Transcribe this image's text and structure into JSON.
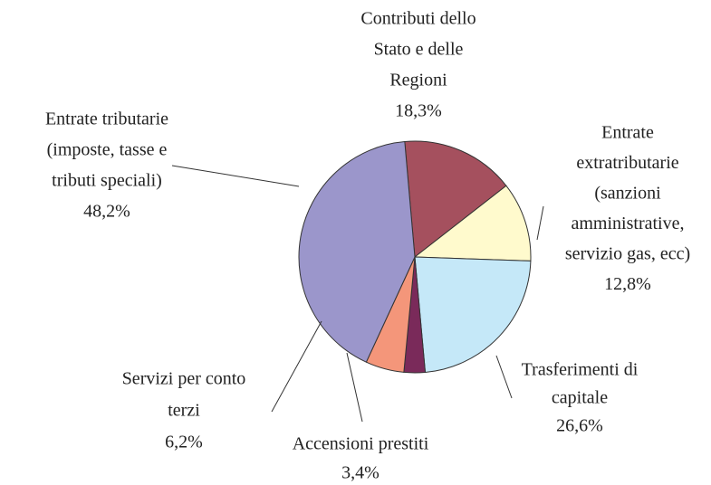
{
  "chart_data": {
    "type": "pie",
    "categories": [
      [
        "Contributi dello",
        "Stato e delle",
        "Regioni"
      ],
      [
        "Entrate",
        "extratributarie",
        "(sanzioni",
        "amministrative,",
        "servizio gas, ecc)"
      ],
      [
        "Trasferimenti di",
        "capitale"
      ],
      [
        "Accensioni prestiti"
      ],
      [
        "Servizi per conto",
        "terzi"
      ],
      [
        "Entrate tributarie",
        "(imposte, tasse e",
        "tributi speciali)"
      ]
    ],
    "values": [
      18.3,
      12.8,
      26.6,
      3.4,
      6.2,
      48.2
    ],
    "value_labels": [
      "18,3%",
      "12,8%",
      "26,6%",
      "3,4%",
      "6,2%",
      "48,2%"
    ],
    "colors": [
      "#a5505e",
      "#fffacd",
      "#c5e8f8",
      "#7a2a5a",
      "#f4967a",
      "#9b96cb"
    ]
  }
}
